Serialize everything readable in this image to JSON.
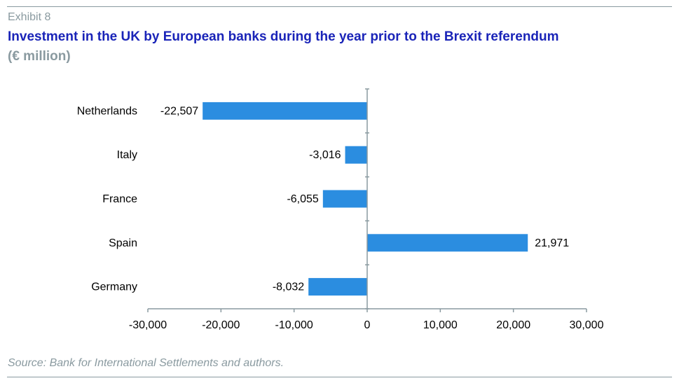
{
  "header": {
    "exhibit": "Exhibit 8",
    "title": "Investment in the UK by European banks during the year prior to the Brexit referendum",
    "subtitle": "(€ million)"
  },
  "footer": {
    "source": "Source: Bank for International Settlements and authors."
  },
  "colors": {
    "bar": "#2b8de0",
    "axis": "#8a9aa0",
    "title": "#1a24b8"
  },
  "chart_data": {
    "type": "bar",
    "orientation": "horizontal",
    "categories": [
      "Netherlands",
      "Italy",
      "France",
      "Spain",
      "Germany"
    ],
    "values": [
      -22507,
      -3016,
      -6055,
      21971,
      -8032
    ],
    "value_labels": [
      "-22,507",
      "-3,016",
      "-6,055",
      "21,971",
      "-8,032"
    ],
    "xlim": [
      -30000,
      30000
    ],
    "xticks": [
      -30000,
      -20000,
      -10000,
      0,
      10000,
      20000,
      30000
    ],
    "xtick_labels": [
      "-30,000",
      "-20,000",
      "-10,000",
      "0",
      "10,000",
      "20,000",
      "30,000"
    ],
    "xlabel": "",
    "ylabel": "",
    "grid": false,
    "legend": "none"
  }
}
